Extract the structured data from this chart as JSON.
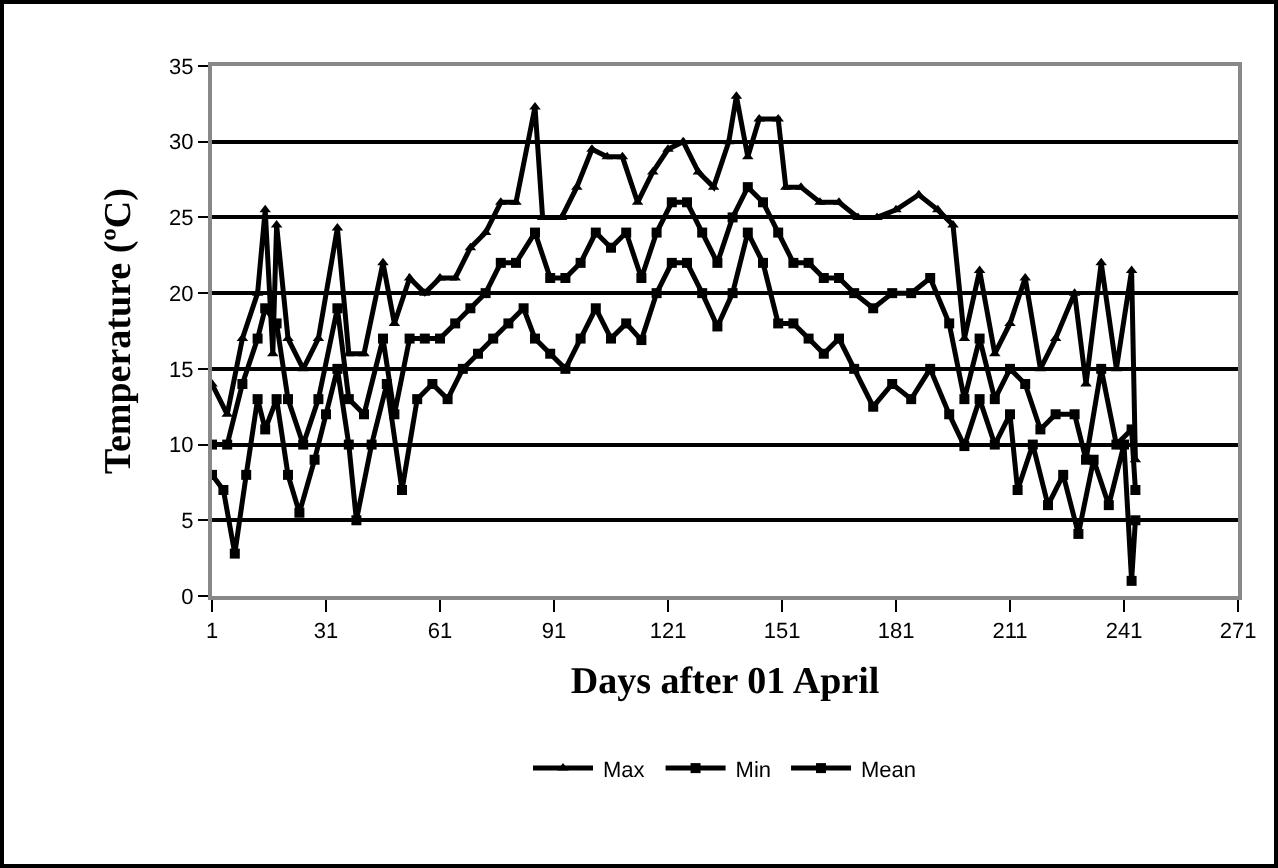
{
  "chart_data": {
    "type": "line",
    "xlabel": "Days after 01 April",
    "ylabel": "Temperature (ºC)",
    "xlim": [
      1,
      271
    ],
    "xticks": [
      1,
      31,
      61,
      91,
      121,
      151,
      181,
      211,
      241,
      271
    ],
    "ylim": [
      0,
      35
    ],
    "yticks": [
      0,
      5,
      10,
      15,
      20,
      25,
      30,
      35
    ],
    "grid": "y",
    "legend": "bottom",
    "line_style": "solid",
    "series": [
      {
        "name": "Max",
        "color": "#000000",
        "marker": "triangle",
        "x": [
          1,
          5,
          9,
          13,
          15,
          17,
          18,
          21,
          25,
          29,
          34,
          37,
          41,
          46,
          49,
          53,
          57,
          61,
          65,
          69,
          73,
          77,
          81,
          86,
          88,
          93,
          97,
          101,
          105,
          109,
          113,
          117,
          121,
          125,
          129,
          133,
          137,
          139,
          142,
          145,
          150,
          152,
          156,
          161,
          166,
          171,
          176,
          181,
          187,
          192,
          196,
          199,
          203,
          207,
          211,
          215,
          219,
          223,
          228,
          231,
          235,
          239,
          243,
          244
        ],
        "values": [
          14,
          12,
          17,
          20,
          25.5,
          16,
          24.5,
          17,
          15,
          17,
          24.3,
          16,
          16,
          22,
          18,
          21,
          20,
          21,
          21,
          23,
          24,
          26,
          26,
          32.3,
          25,
          25,
          27,
          29.5,
          29,
          29,
          26,
          28,
          29.5,
          30,
          28,
          27,
          30,
          33,
          29,
          31.5,
          31.5,
          27,
          27,
          26,
          26,
          25,
          25,
          25.5,
          26.5,
          25.5,
          24.5,
          17,
          21.5,
          16,
          18,
          21,
          15,
          17,
          20,
          14,
          22,
          15,
          21.5,
          9
        ]
      },
      {
        "name": "Min",
        "color": "#000000",
        "marker": "square",
        "x": [
          1,
          4,
          7,
          10,
          13,
          15,
          18,
          21,
          24,
          28,
          31,
          34,
          37,
          39,
          43,
          47,
          51,
          55,
          59,
          63,
          67,
          71,
          75,
          79,
          83,
          86,
          90,
          94,
          98,
          102,
          106,
          110,
          114,
          118,
          122,
          126,
          130,
          134,
          138,
          142,
          146,
          150,
          154,
          158,
          162,
          166,
          170,
          175,
          180,
          185,
          190,
          195,
          199,
          203,
          207,
          211,
          213,
          217,
          221,
          225,
          229,
          233,
          237,
          241,
          243,
          244
        ],
        "values": [
          8,
          7,
          2.8,
          8,
          13,
          11,
          13,
          8,
          5.5,
          9,
          12,
          15,
          10,
          5,
          10,
          14,
          7,
          13,
          14,
          13,
          15,
          16,
          17,
          18,
          19,
          17,
          16,
          15,
          17,
          19,
          17,
          18,
          16.9,
          20,
          22,
          22,
          20,
          17.8,
          20,
          24,
          22,
          18,
          18,
          17,
          16,
          17,
          15,
          12.5,
          14,
          13,
          15,
          12,
          9.9,
          13,
          10,
          12,
          7,
          10,
          6,
          8,
          4.1,
          9,
          6,
          10,
          1,
          5
        ]
      },
      {
        "name": "Mean",
        "color": "#000000",
        "marker": "square",
        "x": [
          1,
          5,
          9,
          13,
          15,
          18,
          21,
          25,
          29,
          34,
          37,
          41,
          46,
          49,
          53,
          57,
          61,
          65,
          69,
          73,
          77,
          81,
          86,
          90,
          94,
          98,
          102,
          106,
          110,
          114,
          118,
          122,
          126,
          130,
          134,
          138,
          142,
          146,
          150,
          154,
          158,
          162,
          166,
          170,
          175,
          180,
          185,
          190,
          195,
          199,
          203,
          207,
          211,
          215,
          219,
          223,
          228,
          231,
          235,
          239,
          243,
          244
        ],
        "values": [
          10,
          10,
          14,
          17,
          19,
          18,
          13,
          10,
          13,
          19,
          13,
          12,
          17,
          12,
          17,
          17,
          17,
          18,
          19,
          20,
          22,
          22,
          24,
          21,
          21,
          22,
          24,
          23,
          24,
          21,
          24,
          26,
          26,
          24,
          22,
          25,
          27,
          26,
          24,
          22,
          22,
          21,
          21,
          20,
          19,
          20,
          20,
          21,
          18,
          13,
          17,
          13,
          15,
          14,
          11,
          12,
          12,
          9,
          15,
          10,
          11,
          7
        ]
      }
    ]
  }
}
